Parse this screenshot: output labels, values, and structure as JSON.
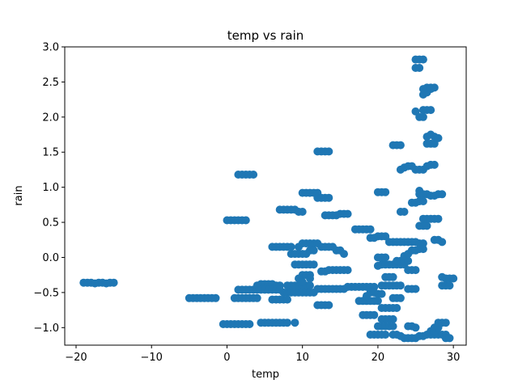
{
  "chart_data": {
    "type": "scatter",
    "title": "temp vs rain",
    "xlabel": "temp",
    "ylabel": "rain",
    "xlim": [
      -21.5,
      31.7
    ],
    "ylim": [
      -1.25,
      3.0
    ],
    "xticks": [
      -20,
      -10,
      0,
      10,
      20,
      30
    ],
    "xtick_labels": [
      "−20",
      "−10",
      "0",
      "10",
      "20",
      "30"
    ],
    "yticks": [
      -1.0,
      -0.5,
      0.0,
      0.5,
      1.0,
      1.5,
      2.0,
      2.5,
      3.0
    ],
    "ytick_labels": [
      "−1.0",
      "−0.5",
      "0.0",
      "0.5",
      "1.0",
      "1.5",
      "2.0",
      "2.5",
      "3.0"
    ],
    "grid": false,
    "marker_color": "#1f77b4",
    "points": [
      [
        -19,
        -0.36
      ],
      [
        -18.5,
        -0.36
      ],
      [
        -18,
        -0.36
      ],
      [
        -17.5,
        -0.37
      ],
      [
        -17,
        -0.36
      ],
      [
        -16.5,
        -0.36
      ],
      [
        -16,
        -0.37
      ],
      [
        -15.5,
        -0.36
      ],
      [
        -15,
        -0.36
      ],
      [
        -5,
        -0.58
      ],
      [
        -4.5,
        -0.58
      ],
      [
        -4,
        -0.58
      ],
      [
        -3.5,
        -0.58
      ],
      [
        -3,
        -0.58
      ],
      [
        -2.5,
        -0.58
      ],
      [
        -2,
        -0.58
      ],
      [
        -1.5,
        -0.58
      ],
      [
        -0.5,
        -0.95
      ],
      [
        0,
        -0.95
      ],
      [
        0.5,
        -0.95
      ],
      [
        1,
        -0.95
      ],
      [
        1.5,
        -0.95
      ],
      [
        2,
        -0.95
      ],
      [
        2.5,
        -0.95
      ],
      [
        3,
        -0.95
      ],
      [
        0,
        0.53
      ],
      [
        0.5,
        0.53
      ],
      [
        1,
        0.53
      ],
      [
        1.5,
        0.53
      ],
      [
        2,
        0.53
      ],
      [
        2.5,
        0.53
      ],
      [
        1,
        -0.58
      ],
      [
        1.5,
        -0.58
      ],
      [
        2,
        -0.58
      ],
      [
        2.5,
        -0.58
      ],
      [
        3,
        -0.58
      ],
      [
        3.5,
        -0.58
      ],
      [
        4,
        -0.58
      ],
      [
        1.5,
        -0.46
      ],
      [
        2,
        -0.46
      ],
      [
        2.5,
        -0.46
      ],
      [
        3,
        -0.46
      ],
      [
        3.5,
        -0.46
      ],
      [
        4,
        -0.46
      ],
      [
        1.5,
        1.18
      ],
      [
        2,
        1.18
      ],
      [
        2.5,
        1.18
      ],
      [
        3,
        1.18
      ],
      [
        3.5,
        1.18
      ],
      [
        4,
        -0.4
      ],
      [
        4.5,
        -0.38
      ],
      [
        5,
        -0.38
      ],
      [
        5.5,
        -0.38
      ],
      [
        6,
        -0.38
      ],
      [
        6.5,
        -0.4
      ],
      [
        7,
        -0.4
      ],
      [
        4.5,
        -0.93
      ],
      [
        5,
        -0.93
      ],
      [
        5.5,
        -0.93
      ],
      [
        6,
        -0.93
      ],
      [
        6.5,
        -0.93
      ],
      [
        7,
        -0.93
      ],
      [
        7.5,
        -0.93
      ],
      [
        8,
        -0.93
      ],
      [
        9,
        -0.93
      ],
      [
        4.5,
        -0.46
      ],
      [
        5,
        -0.46
      ],
      [
        5.5,
        -0.46
      ],
      [
        6,
        -0.46
      ],
      [
        6.5,
        -0.46
      ],
      [
        7,
        -0.46
      ],
      [
        7.5,
        -0.5
      ],
      [
        8,
        -0.5
      ],
      [
        8.5,
        -0.5
      ],
      [
        9,
        -0.5
      ],
      [
        9.5,
        -0.5
      ],
      [
        10,
        -0.5
      ],
      [
        10.5,
        -0.5
      ],
      [
        11,
        -0.5
      ],
      [
        11.5,
        -0.5
      ],
      [
        6,
        -0.6
      ],
      [
        6.5,
        -0.6
      ],
      [
        7,
        -0.6
      ],
      [
        7.5,
        -0.6
      ],
      [
        8,
        -0.6
      ],
      [
        6,
        0.15
      ],
      [
        6.5,
        0.15
      ],
      [
        7,
        0.15
      ],
      [
        7.5,
        0.15
      ],
      [
        8,
        0.15
      ],
      [
        8.5,
        0.15
      ],
      [
        7,
        0.68
      ],
      [
        7.5,
        0.68
      ],
      [
        8,
        0.68
      ],
      [
        8.5,
        0.68
      ],
      [
        9,
        0.68
      ],
      [
        9.5,
        0.65
      ],
      [
        10,
        0.65
      ],
      [
        8,
        -0.4
      ],
      [
        8.5,
        -0.4
      ],
      [
        9,
        -0.4
      ],
      [
        9.5,
        -0.4
      ],
      [
        10,
        -0.4
      ],
      [
        10.5,
        -0.4
      ],
      [
        11,
        -0.4
      ],
      [
        8.5,
        0.05
      ],
      [
        9,
        0.05
      ],
      [
        9.5,
        0.05
      ],
      [
        10,
        0.05
      ],
      [
        10.5,
        0.05
      ],
      [
        11,
        0.1
      ],
      [
        11.5,
        0.1
      ],
      [
        9,
        -0.1
      ],
      [
        9.5,
        -0.1
      ],
      [
        10,
        -0.1
      ],
      [
        10.5,
        -0.1
      ],
      [
        11,
        -0.1
      ],
      [
        11.5,
        -0.1
      ],
      [
        9.5,
        0.15
      ],
      [
        10,
        0.2
      ],
      [
        10.5,
        0.2
      ],
      [
        11,
        0.2
      ],
      [
        11.5,
        0.2
      ],
      [
        12,
        0.2
      ],
      [
        12.5,
        0.15
      ],
      [
        13,
        0.15
      ],
      [
        13.5,
        0.15
      ],
      [
        14,
        0.15
      ],
      [
        10,
        -0.25
      ],
      [
        10.5,
        -0.25
      ],
      [
        11,
        -0.25
      ],
      [
        9.5,
        -0.3
      ],
      [
        10,
        -0.35
      ],
      [
        11,
        -0.3
      ],
      [
        10,
        0.92
      ],
      [
        10.5,
        0.92
      ],
      [
        11,
        0.92
      ],
      [
        11.5,
        0.92
      ],
      [
        12,
        0.92
      ],
      [
        12,
        0.85
      ],
      [
        12.5,
        0.85
      ],
      [
        13,
        0.85
      ],
      [
        13.5,
        0.85
      ],
      [
        12,
        1.51
      ],
      [
        12.5,
        1.51
      ],
      [
        13,
        1.51
      ],
      [
        13.5,
        1.51
      ],
      [
        12,
        -0.68
      ],
      [
        12.5,
        -0.68
      ],
      [
        13,
        -0.68
      ],
      [
        13.5,
        -0.68
      ],
      [
        12,
        -0.45
      ],
      [
        12.5,
        -0.45
      ],
      [
        13,
        -0.45
      ],
      [
        13.5,
        -0.45
      ],
      [
        14,
        -0.45
      ],
      [
        14.5,
        -0.45
      ],
      [
        15,
        -0.45
      ],
      [
        15.5,
        -0.45
      ],
      [
        16,
        -0.42
      ],
      [
        16.5,
        -0.42
      ],
      [
        17,
        -0.42
      ],
      [
        17.5,
        -0.42
      ],
      [
        18,
        -0.42
      ],
      [
        18.5,
        -0.42
      ],
      [
        19,
        -0.42
      ],
      [
        19.5,
        -0.42
      ],
      [
        12.5,
        -0.2
      ],
      [
        13,
        -0.2
      ],
      [
        13.5,
        -0.18
      ],
      [
        14,
        -0.18
      ],
      [
        14.5,
        -0.18
      ],
      [
        15,
        -0.18
      ],
      [
        15.5,
        -0.18
      ],
      [
        16,
        -0.18
      ],
      [
        13,
        0.6
      ],
      [
        13.5,
        0.6
      ],
      [
        14,
        0.6
      ],
      [
        14.5,
        0.6
      ],
      [
        15,
        0.62
      ],
      [
        15.5,
        0.62
      ],
      [
        16,
        0.62
      ],
      [
        14.5,
        0.1
      ],
      [
        15,
        0.1
      ],
      [
        15.5,
        0.05
      ],
      [
        17,
        0.4
      ],
      [
        17.5,
        0.4
      ],
      [
        18,
        0.4
      ],
      [
        18.5,
        0.4
      ],
      [
        19,
        0.4
      ],
      [
        17.5,
        -0.62
      ],
      [
        18,
        -0.62
      ],
      [
        18.5,
        -0.62
      ],
      [
        19,
        -0.62
      ],
      [
        19.5,
        -0.62
      ],
      [
        20,
        -0.62
      ],
      [
        18,
        -0.82
      ],
      [
        18.5,
        -0.82
      ],
      [
        19,
        -0.82
      ],
      [
        19.5,
        -0.82
      ],
      [
        18.5,
        -0.55
      ],
      [
        19,
        -0.5
      ],
      [
        19.5,
        -0.5
      ],
      [
        20,
        -0.52
      ],
      [
        20.5,
        -0.52
      ],
      [
        19,
        0.28
      ],
      [
        19.5,
        0.28
      ],
      [
        20,
        0.3
      ],
      [
        20.5,
        0.3
      ],
      [
        21,
        0.3
      ],
      [
        19,
        -1.1
      ],
      [
        19.5,
        -1.1
      ],
      [
        20,
        -1.1
      ],
      [
        20.5,
        -1.1
      ],
      [
        21,
        -1.1
      ],
      [
        20,
        0.93
      ],
      [
        20.5,
        0.93
      ],
      [
        21,
        0.93
      ],
      [
        20,
        -0.12
      ],
      [
        20.5,
        -0.1
      ],
      [
        21,
        -0.1
      ],
      [
        21.5,
        -0.1
      ],
      [
        22,
        -0.1
      ],
      [
        22.5,
        -0.1
      ],
      [
        23,
        -0.1
      ],
      [
        23.5,
        -0.1
      ],
      [
        20,
        0.0
      ],
      [
        20.5,
        0.0
      ],
      [
        21,
        0.0
      ],
      [
        20,
        -0.98
      ],
      [
        20.5,
        -0.98
      ],
      [
        21,
        -0.98
      ],
      [
        21.5,
        -0.98
      ],
      [
        22,
        -0.98
      ],
      [
        20.5,
        -0.88
      ],
      [
        21,
        -0.88
      ],
      [
        21.5,
        -0.88
      ],
      [
        22,
        -0.88
      ],
      [
        20.5,
        -0.4
      ],
      [
        21,
        -0.4
      ],
      [
        21.5,
        -0.4
      ],
      [
        22,
        -0.4
      ],
      [
        22.5,
        -0.4
      ],
      [
        23,
        -0.4
      ],
      [
        20.5,
        -0.72
      ],
      [
        21,
        -0.72
      ],
      [
        21.5,
        -0.72
      ],
      [
        22,
        -0.72
      ],
      [
        22.5,
        -0.72
      ],
      [
        21,
        -0.28
      ],
      [
        21.5,
        -0.28
      ],
      [
        22,
        -0.28
      ],
      [
        21.5,
        0.22
      ],
      [
        22,
        0.22
      ],
      [
        22.5,
        0.22
      ],
      [
        23,
        0.22
      ],
      [
        23.5,
        0.22
      ],
      [
        24,
        0.22
      ],
      [
        24.5,
        0.22
      ],
      [
        25,
        0.22
      ],
      [
        25.5,
        0.2
      ],
      [
        26,
        0.2
      ],
      [
        22,
        -0.58
      ],
      [
        22.5,
        -0.58
      ],
      [
        23,
        -0.58
      ],
      [
        22,
        1.6
      ],
      [
        22.5,
        1.6
      ],
      [
        23,
        1.6
      ],
      [
        22,
        -1.1
      ],
      [
        22.5,
        -1.1
      ],
      [
        23,
        -1.12
      ],
      [
        22.5,
        -0.05
      ],
      [
        23,
        -0.05
      ],
      [
        23.5,
        -0.05
      ],
      [
        24,
        -0.05
      ],
      [
        23,
        0.65
      ],
      [
        23.5,
        0.65
      ],
      [
        23,
        1.25
      ],
      [
        23.5,
        1.28
      ],
      [
        24,
        1.3
      ],
      [
        24.5,
        1.3
      ],
      [
        23.5,
        0.02
      ],
      [
        24,
        0.05
      ],
      [
        24.5,
        0.1
      ],
      [
        25,
        0.1
      ],
      [
        25.5,
        0.12
      ],
      [
        26,
        0.12
      ],
      [
        23.5,
        -1.15
      ],
      [
        24,
        -1.15
      ],
      [
        24.5,
        -1.15
      ],
      [
        25,
        -1.15
      ],
      [
        25.5,
        -1.12
      ],
      [
        26,
        -1.12
      ],
      [
        26.5,
        -1.1
      ],
      [
        27,
        -1.1
      ],
      [
        27.5,
        -1.1
      ],
      [
        28,
        -1.1
      ],
      [
        28.5,
        -1.1
      ],
      [
        29,
        -1.1
      ],
      [
        24,
        -0.18
      ],
      [
        24.5,
        -0.18
      ],
      [
        25,
        -0.18
      ],
      [
        24,
        -0.45
      ],
      [
        24.5,
        -0.45
      ],
      [
        25,
        -0.45
      ],
      [
        24,
        -0.98
      ],
      [
        24.5,
        -0.98
      ],
      [
        25,
        -1.0
      ],
      [
        24.5,
        0.78
      ],
      [
        25,
        0.78
      ],
      [
        25.5,
        0.8
      ],
      [
        26,
        0.8
      ],
      [
        25,
        1.25
      ],
      [
        25.5,
        1.25
      ],
      [
        26,
        1.25
      ],
      [
        25,
        2.08
      ],
      [
        25.5,
        2.0
      ],
      [
        26,
        2.0
      ],
      [
        25,
        2.7
      ],
      [
        25.5,
        2.7
      ],
      [
        25,
        2.82
      ],
      [
        25.5,
        2.82
      ],
      [
        26,
        2.82
      ],
      [
        25.5,
        0.95
      ],
      [
        25.5,
        0.9
      ],
      [
        26,
        0.9
      ],
      [
        26.5,
        0.9
      ],
      [
        27,
        0.88
      ],
      [
        27.5,
        0.88
      ],
      [
        28,
        0.9
      ],
      [
        28.5,
        0.9
      ],
      [
        25.5,
        0.45
      ],
      [
        26,
        0.45
      ],
      [
        26.5,
        0.45
      ],
      [
        26,
        0.55
      ],
      [
        26.5,
        0.55
      ],
      [
        27,
        0.55
      ],
      [
        27.5,
        0.55
      ],
      [
        28,
        0.55
      ],
      [
        26,
        2.1
      ],
      [
        26.5,
        2.1
      ],
      [
        27,
        2.1
      ],
      [
        26,
        2.32
      ],
      [
        26.5,
        2.35
      ],
      [
        27,
        2.4
      ],
      [
        26,
        2.4
      ],
      [
        26.5,
        2.42
      ],
      [
        27,
        2.42
      ],
      [
        27.5,
        2.42
      ],
      [
        26.5,
        1.3
      ],
      [
        27,
        1.32
      ],
      [
        27.5,
        1.32
      ],
      [
        26.5,
        1.62
      ],
      [
        27,
        1.62
      ],
      [
        27.5,
        1.62
      ],
      [
        26.5,
        1.72
      ],
      [
        27,
        1.75
      ],
      [
        27.5,
        1.72
      ],
      [
        28,
        1.7
      ],
      [
        27,
        -1.05
      ],
      [
        27.5,
        -1.05
      ],
      [
        27.5,
        0.25
      ],
      [
        28,
        0.25
      ],
      [
        28.5,
        0.22
      ],
      [
        27.5,
        -1.0
      ],
      [
        28,
        -1.0
      ],
      [
        28,
        -0.93
      ],
      [
        28.5,
        -0.93
      ],
      [
        29,
        -0.93
      ],
      [
        28.5,
        -0.28
      ],
      [
        29,
        -0.3
      ],
      [
        29.5,
        -0.3
      ],
      [
        30,
        -0.3
      ],
      [
        28.5,
        -0.4
      ],
      [
        29,
        -0.4
      ],
      [
        29.5,
        -0.4
      ],
      [
        29,
        -1.15
      ],
      [
        29.5,
        -1.15
      ]
    ]
  }
}
